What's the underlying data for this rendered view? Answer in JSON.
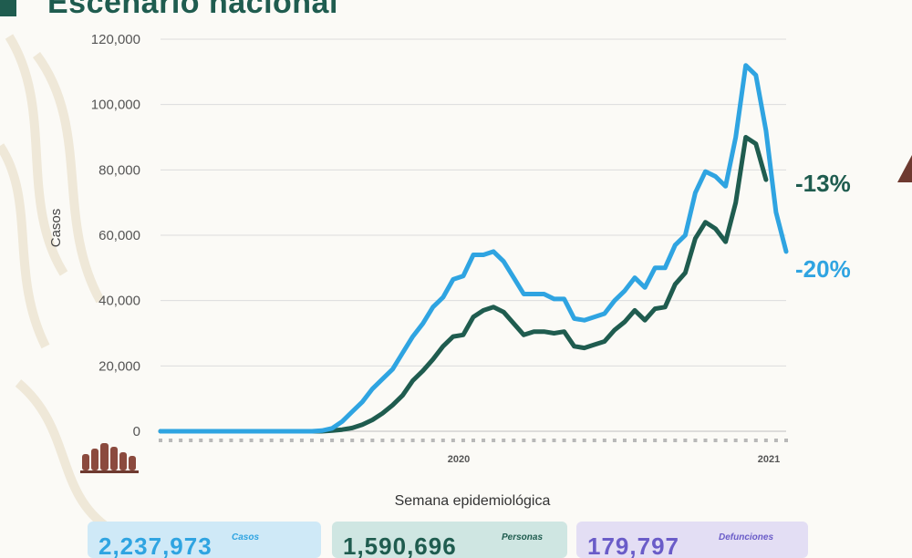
{
  "title": "Escenario nacional",
  "chart_data": {
    "type": "line",
    "title": "Escenario nacional",
    "xlabel": "Semana epidemiológica",
    "ylabel": "Casos",
    "ylim": [
      0,
      120000
    ],
    "yticks": [
      0,
      20000,
      40000,
      60000,
      80000,
      100000,
      120000
    ],
    "ytick_labels": [
      "0",
      "20,000",
      "40,000",
      "60,000",
      "80,000",
      "100,000",
      "120,000"
    ],
    "year_labels": [
      "2020",
      "2021"
    ],
    "grid": true,
    "series": [
      {
        "color": "#2fa4e1",
        "end_label": "-20%",
        "values": [
          0,
          0,
          0,
          0,
          0,
          0,
          0,
          0,
          0,
          0,
          0,
          0,
          0,
          0,
          0,
          0,
          200,
          900,
          3000,
          6000,
          9000,
          13000,
          16000,
          19000,
          24000,
          29000,
          33000,
          38000,
          41000,
          46500,
          47500,
          54000,
          54000,
          55000,
          52000,
          47000,
          42000,
          42000,
          42000,
          40500,
          40500,
          34500,
          34000,
          35000,
          36000,
          40000,
          43000,
          47000,
          44000,
          50000,
          50000,
          57000,
          60000,
          73000,
          79500,
          78000,
          75000,
          90000,
          112000,
          109000,
          92000,
          67000,
          55000
        ]
      },
      {
        "color": "#1f5c4f",
        "end_label": "-13%",
        "values": [
          0,
          0,
          0,
          0,
          0,
          0,
          0,
          0,
          0,
          0,
          0,
          0,
          0,
          0,
          0,
          0,
          0,
          200,
          500,
          1000,
          2000,
          3500,
          5500,
          8000,
          11000,
          15500,
          18500,
          22000,
          26000,
          29000,
          29500,
          35000,
          37000,
          38000,
          36500,
          33000,
          29500,
          30500,
          30500,
          30000,
          30500,
          26000,
          25500,
          26500,
          27500,
          31000,
          33500,
          37000,
          34000,
          37500,
          38000,
          45000,
          48500,
          59000,
          64000,
          62000,
          58000,
          70000,
          90000,
          88000,
          77000
        ]
      }
    ]
  },
  "stats": [
    {
      "value": "2,237,973",
      "label": "Casos",
      "color": "#2fa4e1",
      "bg": "#cfe9f7"
    },
    {
      "value": "1,590,696",
      "label": "Personas",
      "color": "#1f5c4f",
      "bg": "#cfe6e2"
    },
    {
      "value": "179,797",
      "label": "Defunciones",
      "color": "#6a5cc8",
      "bg": "#e3def4"
    }
  ]
}
